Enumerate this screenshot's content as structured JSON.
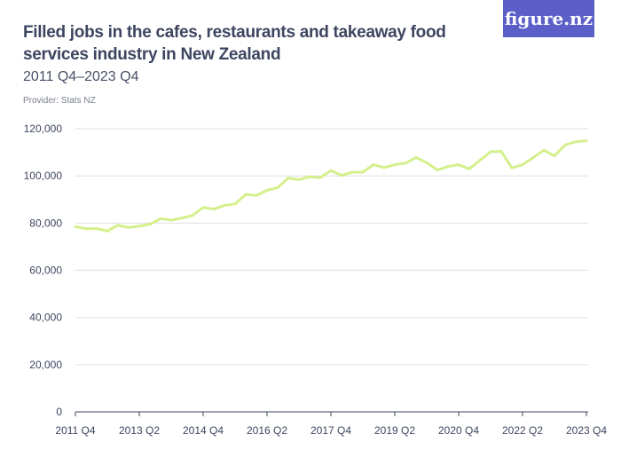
{
  "header": {
    "title": "Filled jobs in the cafes, restaurants and takeaway food services industry in New Zealand",
    "subtitle": "2011 Q4–2023 Q4",
    "provider": "Provider: Stats NZ",
    "logo": "figure.nz"
  },
  "colors": {
    "line": "#d4f08c",
    "grid": "#e2e2e2",
    "logo_bg": "#5b5fc7"
  },
  "chart_data": {
    "type": "line",
    "title": "Filled jobs in the cafes, restaurants and takeaway food services industry in New Zealand",
    "xlabel": "",
    "ylabel": "",
    "ylim": [
      0,
      120000
    ],
    "yticks": [
      0,
      20000,
      40000,
      60000,
      80000,
      100000,
      120000
    ],
    "ytick_labels": [
      "0",
      "20,000",
      "40,000",
      "60,000",
      "80,000",
      "100,000",
      "120,000"
    ],
    "xtick_labels": [
      "2011 Q4",
      "2013 Q2",
      "2014 Q4",
      "2016 Q2",
      "2017 Q4",
      "2019 Q2",
      "2020 Q4",
      "2022 Q2",
      "2023 Q4"
    ],
    "xtick_index": [
      0,
      6,
      12,
      18,
      24,
      30,
      36,
      42,
      48
    ],
    "grid": true,
    "series": [
      {
        "name": "Filled jobs",
        "values": [
          78500,
          77600,
          77750,
          76600,
          79100,
          78100,
          78700,
          79500,
          81900,
          81250,
          82100,
          83250,
          86600,
          85900,
          87500,
          88100,
          92100,
          91750,
          93900,
          95000,
          99100,
          98400,
          99600,
          99250,
          102250,
          100250,
          101500,
          101600,
          104750,
          103500,
          104750,
          105400,
          107750,
          105600,
          102500,
          104000,
          104750,
          103000,
          106600,
          110250,
          110400,
          103400,
          104750,
          107750,
          110900,
          108500,
          113100,
          114500,
          114900
        ]
      }
    ]
  }
}
